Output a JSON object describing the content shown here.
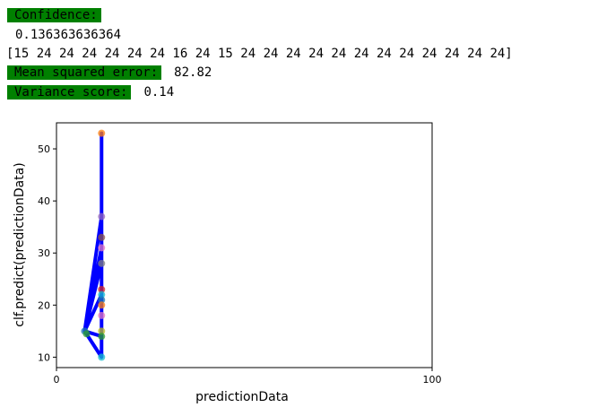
{
  "output": {
    "confidence_label": "Confidence:",
    "confidence_value": "0.136363636364",
    "prediction_array": "[15 24 24 24 24 24 24 16 24 15 24 24 24 24 24 24 24 24 24 24 24 24]",
    "mse_label": "Mean squared error:",
    "mse_value": "82.82",
    "variance_label": "Variance score:",
    "variance_value": "0.14"
  },
  "colors": {
    "label_highlight": "#008000",
    "line": "#0000ff"
  },
  "chart_data": {
    "type": "scatter",
    "xlabel": "predictionData",
    "ylabel": "clf.predict(predictionData)",
    "xlim": [
      0,
      100
    ],
    "ylim": [
      8,
      55
    ],
    "xticks": [
      "0",
      "100"
    ],
    "yticks": [
      "10",
      "20",
      "30",
      "40",
      "50"
    ],
    "grid": false,
    "points": [
      {
        "x": 12,
        "y": 53,
        "color": "#ff7f0e"
      },
      {
        "x": 12,
        "y": 37,
        "color": "#9467bd"
      },
      {
        "x": 12,
        "y": 33,
        "color": "#8c564b"
      },
      {
        "x": 12,
        "y": 31,
        "color": "#e377c2"
      },
      {
        "x": 12,
        "y": 28,
        "color": "#7f7f7f"
      },
      {
        "x": 12,
        "y": 23,
        "color": "#d62728"
      },
      {
        "x": 12,
        "y": 22,
        "color": "#17becf"
      },
      {
        "x": 12,
        "y": 21,
        "color": "#1f77b4"
      },
      {
        "x": 12,
        "y": 20,
        "color": "#ff7f0e"
      },
      {
        "x": 12,
        "y": 18,
        "color": "#e377c2"
      },
      {
        "x": 12,
        "y": 15,
        "color": "#bcbd22"
      },
      {
        "x": 12,
        "y": 14,
        "color": "#2ca02c"
      },
      {
        "x": 12,
        "y": 10,
        "color": "#17becf"
      },
      {
        "x": 7.5,
        "y": 15,
        "color": "#1f77b4"
      },
      {
        "x": 8,
        "y": 14.5,
        "color": "#2ca02c"
      }
    ],
    "series": [
      {
        "line_points": [
          [
            12,
            53
          ],
          [
            12,
            14
          ],
          [
            7.5,
            15
          ],
          [
            12,
            37
          ],
          [
            12,
            22
          ],
          [
            7.5,
            15
          ],
          [
            12,
            10
          ],
          [
            12,
            28
          ],
          [
            7.5,
            15
          ],
          [
            12,
            31
          ],
          [
            12,
            14
          ]
        ]
      }
    ]
  }
}
